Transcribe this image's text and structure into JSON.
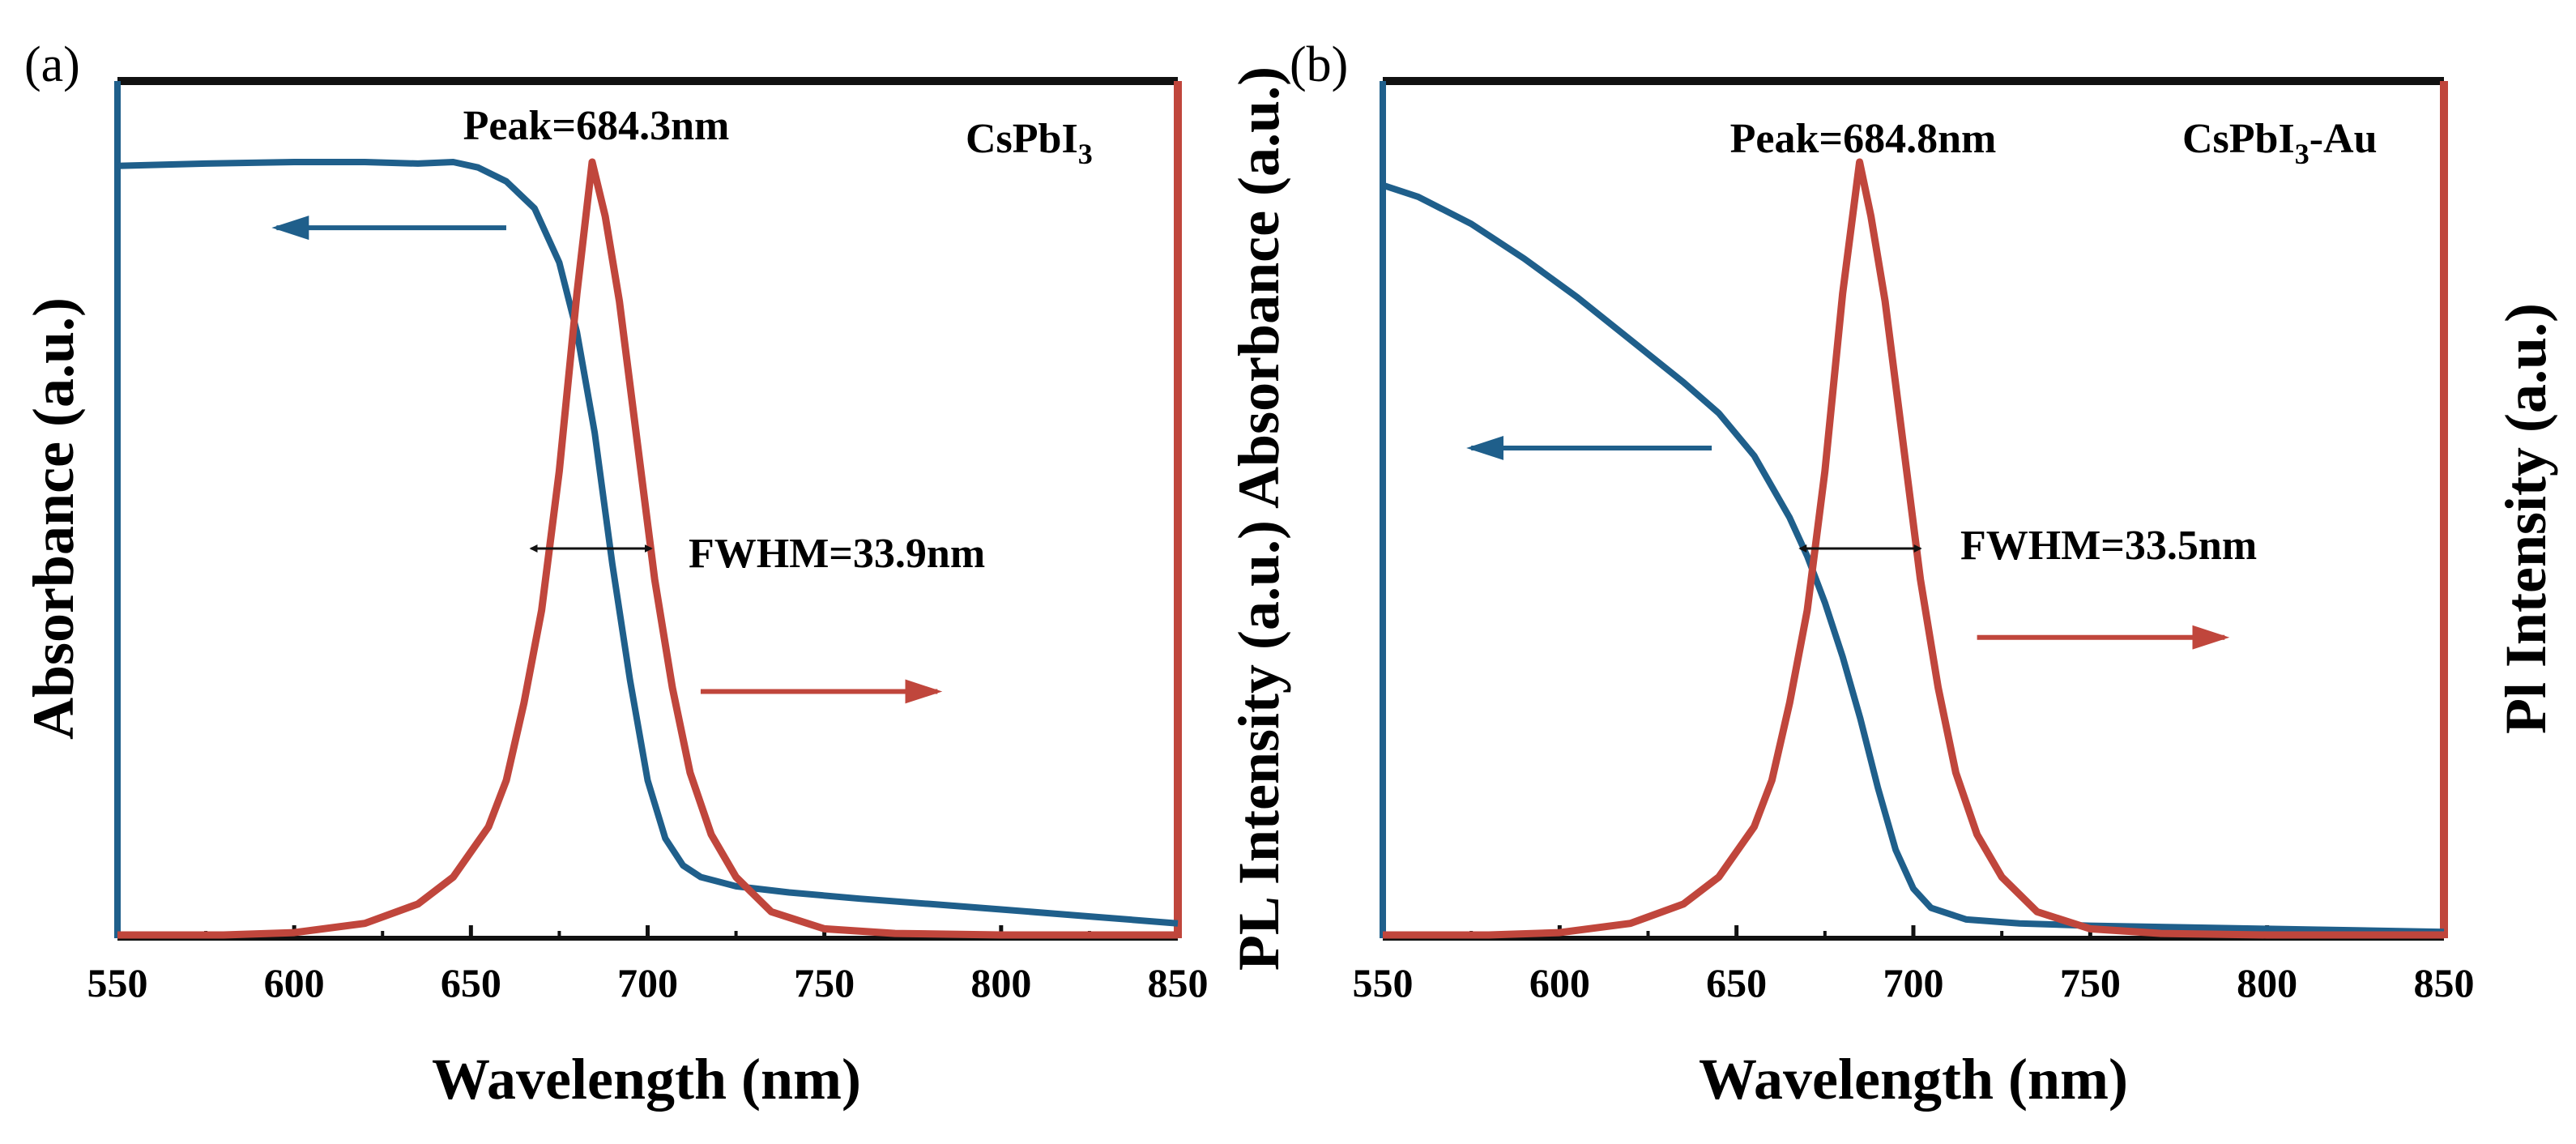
{
  "colors": {
    "absorbance": "#1f5f8b",
    "pl": "#c0463c",
    "axis_left": "#1f5f8b",
    "axis_right": "#c0463c",
    "frame": "#111111"
  },
  "chart_data": [
    {
      "type": "line",
      "panel": "(a)",
      "sample": "CsPbI",
      "sample_sub": "3",
      "sample_suffix": "",
      "xlabel": "Wavelength (nm)",
      "ylabel_left": "Absorbance (a.u.)",
      "ylabel_right": "",
      "xlim": [
        550,
        850
      ],
      "ylim": [
        0,
        1
      ],
      "xticks": [
        550,
        600,
        650,
        700,
        750,
        800,
        850
      ],
      "peak_label": "Peak=684.3nm",
      "fwhm_label": "FWHM=33.9nm",
      "peak_nm": 684.3,
      "fwhm_nm": 33.9,
      "fwhm_arrow_x": [
        667,
        701
      ],
      "fwhm_arrow_y": 0.5,
      "left_arrow": {
        "from_x": 660,
        "to_x": 595,
        "y": 0.915
      },
      "right_arrow": {
        "from_x": 715,
        "to_x": 782,
        "y": 0.315
      },
      "series": [
        {
          "name": "Absorbance",
          "axis": "left",
          "x": [
            550,
            575,
            600,
            620,
            635,
            645,
            652,
            660,
            668,
            675,
            680,
            685,
            690,
            695,
            700,
            705,
            710,
            715,
            725,
            740,
            760,
            780,
            800,
            825,
            850
          ],
          "y": [
            0.995,
            0.998,
            1.0,
            1.0,
            0.998,
            1.0,
            0.993,
            0.975,
            0.94,
            0.87,
            0.78,
            0.65,
            0.48,
            0.33,
            0.2,
            0.125,
            0.09,
            0.075,
            0.063,
            0.055,
            0.047,
            0.04,
            0.033,
            0.024,
            0.015
          ]
        },
        {
          "name": "PL Intensity",
          "axis": "right",
          "x": [
            550,
            580,
            600,
            620,
            635,
            645,
            655,
            660,
            665,
            670,
            675,
            680,
            684.3,
            688,
            692,
            697,
            702,
            707,
            712,
            718,
            725,
            735,
            750,
            770,
            800,
            850
          ],
          "y": [
            0,
            0,
            0.003,
            0.015,
            0.04,
            0.075,
            0.14,
            0.2,
            0.3,
            0.42,
            0.6,
            0.83,
            1.0,
            0.93,
            0.82,
            0.64,
            0.46,
            0.32,
            0.21,
            0.13,
            0.075,
            0.03,
            0.008,
            0.002,
            0,
            0
          ]
        }
      ]
    },
    {
      "type": "line",
      "panel": "(b)",
      "sample": "CsPbI",
      "sample_sub": "3",
      "sample_suffix": "-Au",
      "xlabel": "Wavelength (nm)",
      "ylabel_left": "PL Intensity (a.u.) Absorbance (a.u.)",
      "ylabel_right": "Pl Intensity (a.u.)",
      "xlim": [
        550,
        850
      ],
      "ylim": [
        0,
        1
      ],
      "xticks": [
        550,
        600,
        650,
        700,
        750,
        800,
        850
      ],
      "peak_label": "Peak=684.8nm",
      "fwhm_label": "FWHM=33.5nm",
      "peak_nm": 684.8,
      "fwhm_nm": 33.5,
      "fwhm_arrow_x": [
        668,
        702
      ],
      "fwhm_arrow_y": 0.5,
      "left_arrow": {
        "from_x": 643,
        "to_x": 575,
        "y": 0.63
      },
      "right_arrow": {
        "from_x": 718,
        "to_x": 788,
        "y": 0.385
      },
      "series": [
        {
          "name": "Absorbance",
          "axis": "left",
          "x": [
            550,
            560,
            575,
            590,
            605,
            620,
            635,
            645,
            655,
            665,
            670,
            675,
            680,
            685,
            690,
            695,
            700,
            705,
            715,
            730,
            750,
            775,
            800,
            825,
            850
          ],
          "y": [
            0.97,
            0.955,
            0.92,
            0.875,
            0.825,
            0.77,
            0.715,
            0.675,
            0.62,
            0.54,
            0.49,
            0.43,
            0.36,
            0.28,
            0.19,
            0.11,
            0.06,
            0.035,
            0.02,
            0.015,
            0.012,
            0.01,
            0.008,
            0.006,
            0.004
          ]
        },
        {
          "name": "PL Intensity",
          "axis": "right",
          "x": [
            550,
            580,
            600,
            620,
            635,
            645,
            655,
            660,
            665,
            670,
            675,
            680,
            684.8,
            688,
            692,
            697,
            702,
            707,
            712,
            718,
            725,
            735,
            750,
            770,
            800,
            850
          ],
          "y": [
            0,
            0,
            0.003,
            0.015,
            0.04,
            0.075,
            0.14,
            0.2,
            0.3,
            0.42,
            0.6,
            0.83,
            1.0,
            0.93,
            0.82,
            0.64,
            0.46,
            0.32,
            0.21,
            0.13,
            0.075,
            0.03,
            0.008,
            0.002,
            0,
            0
          ]
        }
      ]
    }
  ]
}
